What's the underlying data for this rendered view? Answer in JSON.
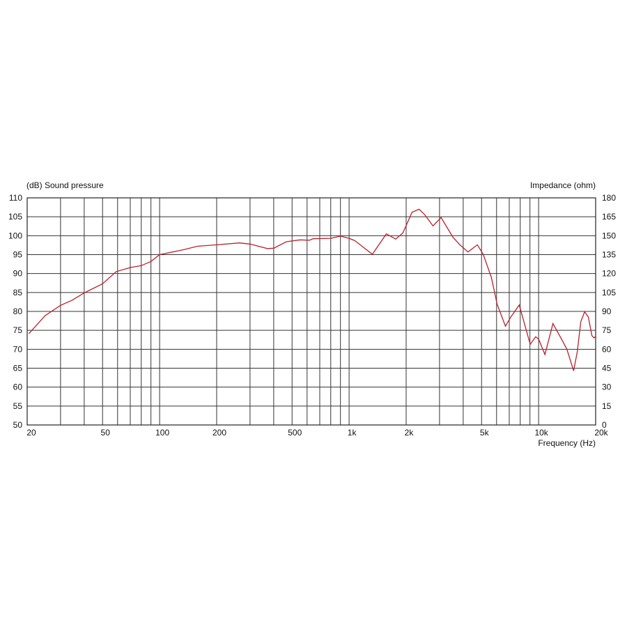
{
  "chart_data": {
    "type": "line",
    "title": "",
    "ylabel": "(dB)  Sound pressure",
    "y2label": "Impedance  (ohm)",
    "xlabel": "Frequency  (Hz)",
    "xscale": "log",
    "xlim": [
      20,
      20000
    ],
    "ylim": [
      50,
      110
    ],
    "y2lim": [
      0,
      180
    ],
    "grid": true,
    "x_ticks": [
      20,
      50,
      100,
      200,
      500,
      1000,
      2000,
      5000,
      10000,
      20000
    ],
    "x_tick_labels": [
      "20",
      "50",
      "100",
      "200",
      "500",
      "1k",
      "2k",
      "5k",
      "10k",
      "20k"
    ],
    "x_gridlines": [
      30,
      40,
      50,
      60,
      70,
      80,
      90,
      100,
      200,
      300,
      400,
      500,
      600,
      700,
      800,
      900,
      1000,
      2000,
      3000,
      4000,
      5000,
      6000,
      7000,
      8000,
      9000,
      10000
    ],
    "y_ticks": [
      110,
      105,
      100,
      95,
      90,
      85,
      80,
      75,
      70,
      65,
      60,
      55,
      50
    ],
    "y2_ticks": [
      180,
      165,
      150,
      135,
      120,
      105,
      90,
      75,
      60,
      45,
      30,
      15,
      0
    ],
    "series_color": "#b8202c",
    "series": [
      {
        "x": [
          20.4,
          24.9,
          30,
          34.4,
          40,
          50,
          59,
          70,
          80,
          90,
          100,
          134,
          158,
          200,
          264,
          300,
          370,
          400,
          466,
          552,
          618,
          645,
          800,
          900,
          1000,
          1073,
          1327,
          1573,
          1760,
          1920,
          2150,
          2340,
          2500,
          2770,
          3060,
          3530,
          3840,
          4240,
          4750,
          5100,
          5630,
          6040,
          6680,
          7130,
          7900,
          8360,
          9030,
          9650,
          10000,
          10800,
          11900,
          13500,
          14100,
          15300,
          16000,
          16700,
          17500,
          18300,
          19100,
          19600,
          20000
        ],
        "y": [
          74.1,
          78.9,
          81.6,
          82.9,
          84.9,
          87.3,
          90.5,
          91.6,
          92.1,
          93.2,
          95.0,
          96.3,
          97.2,
          97.6,
          98.1,
          97.8,
          96.6,
          96.7,
          98.4,
          98.9,
          98.8,
          99.2,
          99.3,
          99.9,
          99.3,
          98.7,
          95.1,
          100.5,
          99.1,
          100.7,
          106.2,
          107.0,
          105.6,
          102.6,
          104.8,
          99.6,
          97.6,
          95.7,
          97.6,
          95.1,
          89.0,
          81.9,
          76.1,
          78.5,
          81.7,
          77.3,
          71.3,
          73.3,
          72.7,
          68.6,
          76.8,
          71.8,
          70.0,
          64.3,
          69.3,
          77.3,
          79.9,
          78.5,
          73.6,
          73.0,
          73.4
        ]
      }
    ]
  }
}
